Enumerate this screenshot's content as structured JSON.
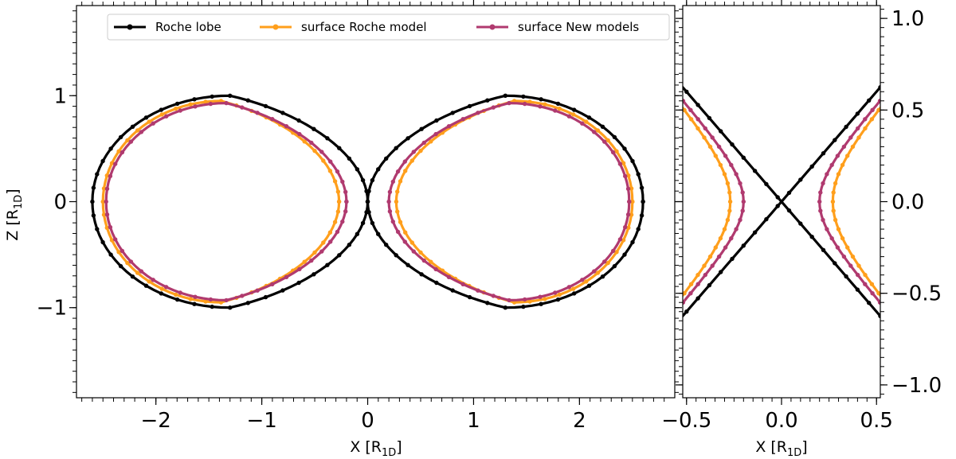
{
  "chart_data": [
    {
      "type": "line",
      "panel": "main",
      "xlabel": "X [R_1D]",
      "ylabel": "Z [R_1D]",
      "xlim": [
        -2.75,
        2.9
      ],
      "ylim": [
        -1.85,
        1.85
      ],
      "xticks": [
        -2,
        -1,
        0,
        1,
        2
      ],
      "xtick_labels": [
        "−2",
        "−1",
        "0",
        "1",
        "2"
      ],
      "yticks": [
        -1,
        0,
        1
      ],
      "ytick_labels": [
        "−1",
        "0",
        "1"
      ],
      "legend": {
        "placement": "top-center",
        "columns": 3
      },
      "series": [
        {
          "name": "Roche lobe",
          "color": "#000000",
          "lobes": [
            {
              "x_left": -2.6,
              "x_right": 0.0,
              "center_x": -1.5,
              "z_max": 1.0
            },
            {
              "x_left": 0.0,
              "x_right": 2.6,
              "center_x": 1.5,
              "z_max": 1.0
            }
          ]
        },
        {
          "name": "surface Roche model",
          "color": "#ff9f1c",
          "lobes": [
            {
              "x_left": -2.5,
              "x_right": -0.27,
              "center_x": -1.4,
              "z_max": 0.95
            },
            {
              "x_left": 0.27,
              "x_right": 2.5,
              "center_x": 1.4,
              "z_max": 0.95
            }
          ]
        },
        {
          "name": "surface New models",
          "color": "#b03a6f",
          "lobes": [
            {
              "x_left": -2.47,
              "x_right": -0.2,
              "center_x": -1.4,
              "z_max": 0.93
            },
            {
              "x_left": 0.2,
              "x_right": 2.47,
              "center_x": 1.4,
              "z_max": 0.93
            }
          ]
        }
      ]
    },
    {
      "type": "line",
      "panel": "zoom",
      "xlabel": "X [R_1D]",
      "ylabel": "",
      "xlim": [
        -0.52,
        0.52
      ],
      "ylim": [
        -1.07,
        1.07
      ],
      "xticks": [
        -0.5,
        0.0,
        0.5
      ],
      "xtick_labels": [
        "−0.5",
        "0.0",
        "0.5"
      ],
      "yticks": [
        -1.0,
        -0.5,
        0.0,
        0.5,
        1.0
      ],
      "ytick_labels": [
        "−1.0",
        "−0.5",
        "0.0",
        "0.5",
        "1.0"
      ],
      "yaxis_side": "right",
      "series_neck": [
        {
          "name": "Roche lobe",
          "color": "#000000",
          "neck_x": 0.0
        },
        {
          "name": "surface Roche model",
          "color": "#ff9f1c",
          "neck_x": 0.27
        },
        {
          "name": "surface New models",
          "color": "#b03a6f",
          "neck_x": 0.2
        }
      ]
    }
  ],
  "labels": {
    "ylabel_main": "Z [R",
    "ylabel_sub": "1D",
    "xlabel_main": "X [R",
    "xlabel_sub": "1D",
    "bracket_close": "]"
  },
  "legend_labels": [
    "Roche lobe",
    "surface Roche model",
    "surface New models"
  ]
}
